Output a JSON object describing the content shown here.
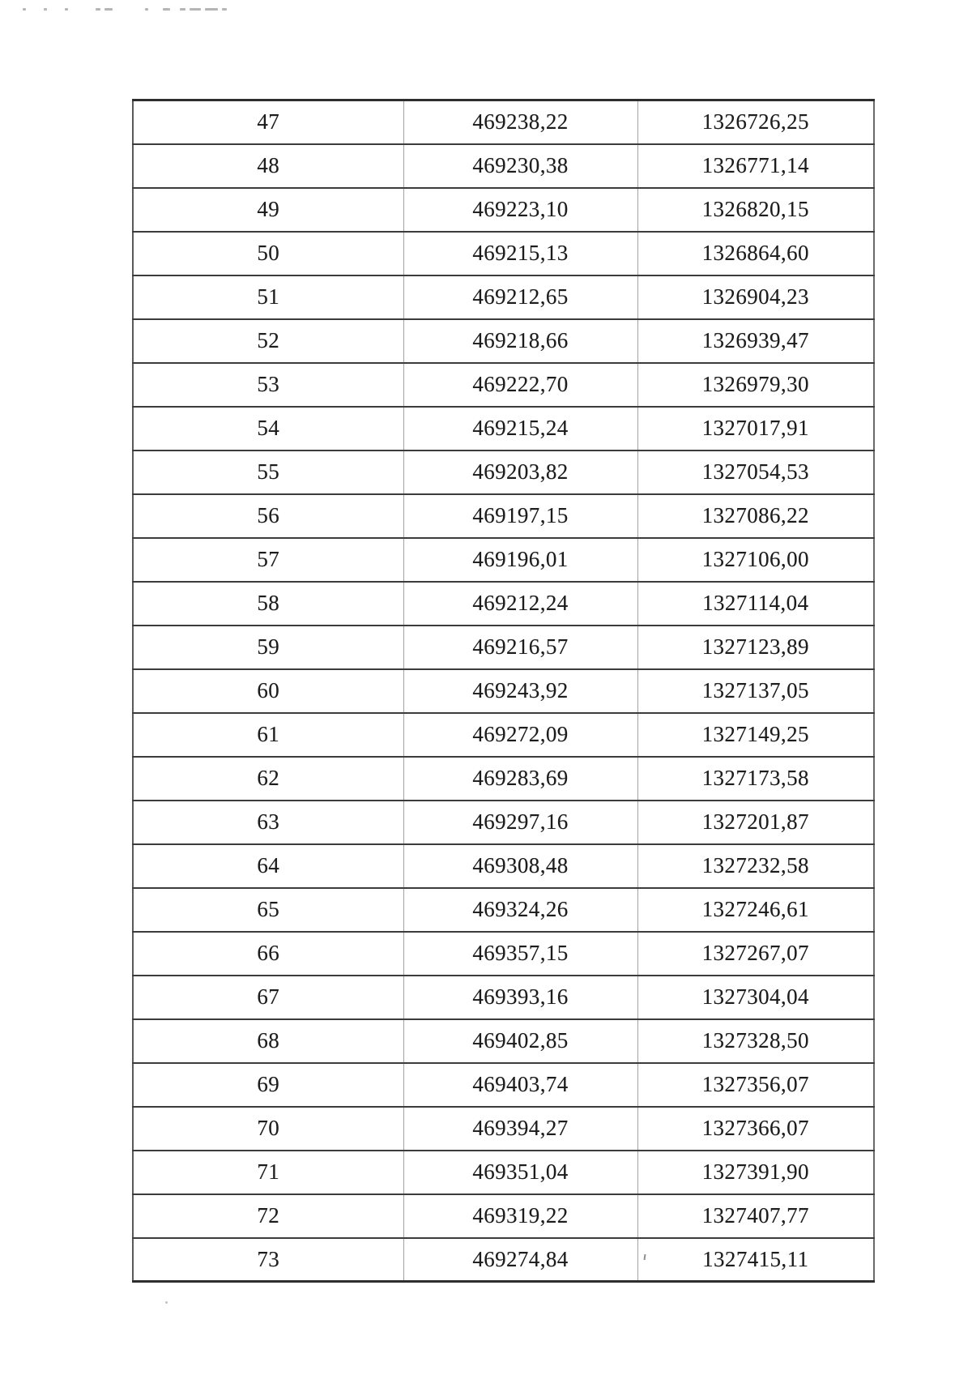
{
  "document": {
    "type": "scanned-table-page",
    "colors": {
      "paper": "#ffffff",
      "text": "#1c1c1c",
      "rule_strong": "#3c3c3c",
      "rule_light": "#a3a3a3"
    }
  },
  "table": {
    "rows": [
      {
        "num": "47",
        "x": "469238,22",
        "y": "1326726,25"
      },
      {
        "num": "48",
        "x": "469230,38",
        "y": "1326771,14"
      },
      {
        "num": "49",
        "x": "469223,10",
        "y": "1326820,15"
      },
      {
        "num": "50",
        "x": "469215,13",
        "y": "1326864,60"
      },
      {
        "num": "51",
        "x": "469212,65",
        "y": "1326904,23"
      },
      {
        "num": "52",
        "x": "469218,66",
        "y": "1326939,47"
      },
      {
        "num": "53",
        "x": "469222,70",
        "y": "1326979,30"
      },
      {
        "num": "54",
        "x": "469215,24",
        "y": "1327017,91"
      },
      {
        "num": "55",
        "x": "469203,82",
        "y": "1327054,53"
      },
      {
        "num": "56",
        "x": "469197,15",
        "y": "1327086,22"
      },
      {
        "num": "57",
        "x": "469196,01",
        "y": "1327106,00"
      },
      {
        "num": "58",
        "x": "469212,24",
        "y": "1327114,04"
      },
      {
        "num": "59",
        "x": "469216,57",
        "y": "1327123,89"
      },
      {
        "num": "60",
        "x": "469243,92",
        "y": "1327137,05"
      },
      {
        "num": "61",
        "x": "469272,09",
        "y": "1327149,25"
      },
      {
        "num": "62",
        "x": "469283,69",
        "y": "1327173,58"
      },
      {
        "num": "63",
        "x": "469297,16",
        "y": "1327201,87"
      },
      {
        "num": "64",
        "x": "469308,48",
        "y": "1327232,58"
      },
      {
        "num": "65",
        "x": "469324,26",
        "y": "1327246,61"
      },
      {
        "num": "66",
        "x": "469357,15",
        "y": "1327267,07"
      },
      {
        "num": "67",
        "x": "469393,16",
        "y": "1327304,04"
      },
      {
        "num": "68",
        "x": "469402,85",
        "y": "1327328,50"
      },
      {
        "num": "69",
        "x": "469403,74",
        "y": "1327356,07"
      },
      {
        "num": "70",
        "x": "469394,27",
        "y": "1327366,07"
      },
      {
        "num": "71",
        "x": "469351,04",
        "y": "1327391,90"
      },
      {
        "num": "72",
        "x": "469319,22",
        "y": "1327407,77"
      },
      {
        "num": "73",
        "x": "469274,84",
        "y": "1327415,11"
      }
    ]
  }
}
